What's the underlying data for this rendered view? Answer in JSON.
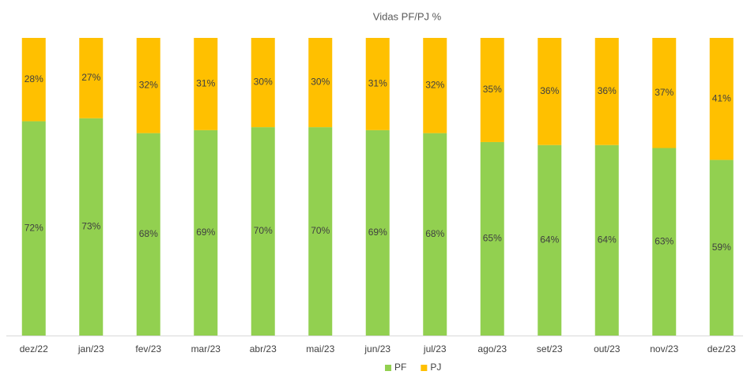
{
  "chart_data": {
    "type": "bar",
    "stacked": true,
    "title": "Vidas PF/PJ %",
    "categories": [
      "dez/22",
      "jan/23",
      "fev/23",
      "mar/23",
      "abr/23",
      "mai/23",
      "jun/23",
      "jul/23",
      "ago/23",
      "set/23",
      "out/23",
      "nov/23",
      "dez/23"
    ],
    "series": [
      {
        "name": "PF",
        "color": "#92d050",
        "values": [
          72,
          73,
          68,
          69,
          70,
          70,
          69,
          68,
          65,
          64,
          64,
          63,
          59
        ],
        "value_labels": [
          "72%",
          "73%",
          "68%",
          "69%",
          "70%",
          "70%",
          "69%",
          "68%",
          "65%",
          "64%",
          "64%",
          "63%",
          "59%"
        ]
      },
      {
        "name": "PJ",
        "color": "#ffc000",
        "values": [
          28,
          27,
          32,
          31,
          30,
          30,
          31,
          32,
          35,
          36,
          36,
          37,
          41
        ],
        "value_labels": [
          "28%",
          "27%",
          "32%",
          "31%",
          "30%",
          "30%",
          "31%",
          "32%",
          "35%",
          "36%",
          "36%",
          "37%",
          "41%"
        ]
      }
    ],
    "ylim": [
      0,
      100
    ],
    "legend": "bottom"
  }
}
